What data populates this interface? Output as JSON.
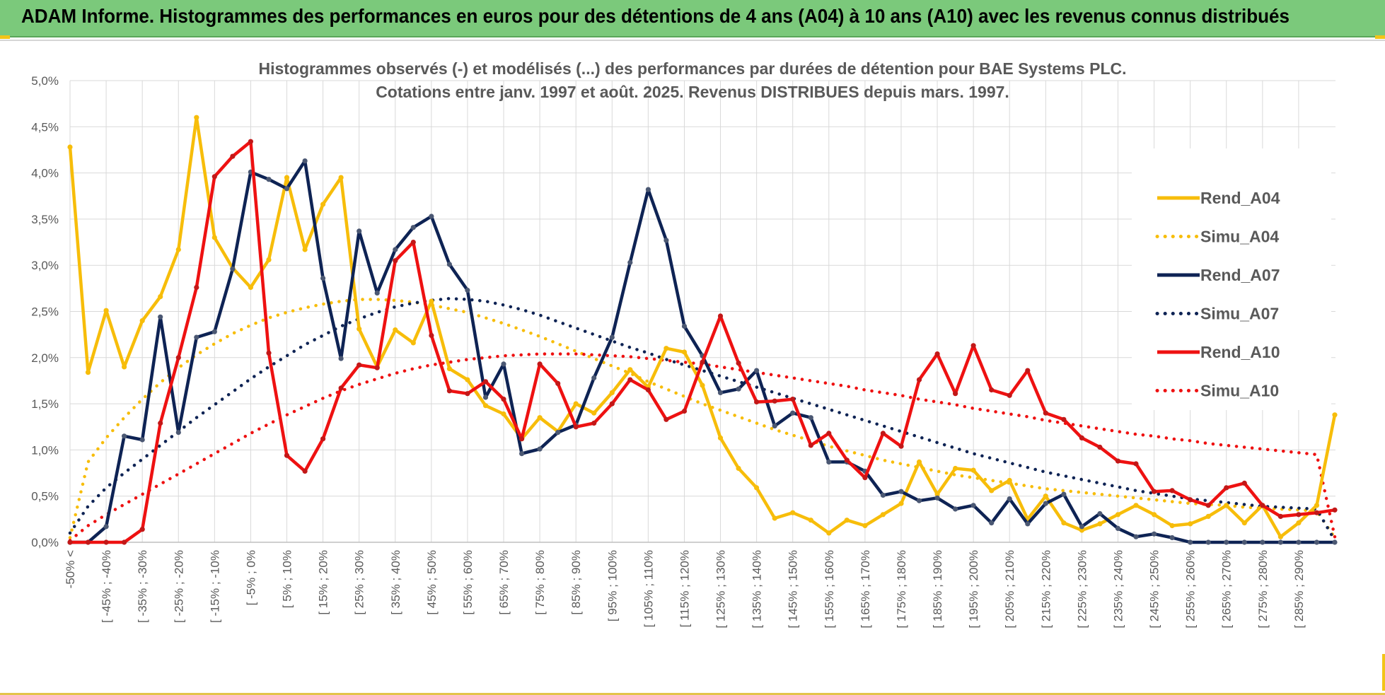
{
  "header": {
    "title": "ADAM Informe. Histogrammes des performances en euros pour des détentions de 4 ans (A04) à 10 ans (A10) avec les revenus connus distribués"
  },
  "colors": {
    "banner": "#7bc97b",
    "accent": "#f2c418",
    "rend_a04": "#f7bd0a",
    "rend_a07": "#0e2354",
    "rend_a10": "#ee1111",
    "grid": "#d9d9d9",
    "text": "#595959"
  },
  "chart_data": {
    "type": "line",
    "title_line1": "Histogrammes observés (-) et modélisés (...) des performances par durées de détention pour BAE Systems PLC.",
    "title_line2": "Cotations entre janv. 1997 et août. 2025. Revenus DISTRIBUES depuis mars. 1997.",
    "xlabel": "",
    "ylabel": "",
    "ylim": [
      0,
      5.0
    ],
    "yticks": [
      "0,0%",
      "0,5%",
      "1,0%",
      "1,5%",
      "2,0%",
      "2,5%",
      "3,0%",
      "3,5%",
      "4,0%",
      "4,5%",
      "5,0%"
    ],
    "grid": true,
    "legend_position": "right",
    "x_tick_labels": [
      "-50% <",
      "[ -45% ; -40%",
      "[ -35% ; -30%",
      "[ -25% ; -20%",
      "[ -15% ; -10%",
      "[ -5% ; 0%",
      "[ 5% ; 10%",
      "[ 15% ; 20%",
      "[ 25% ; 30%",
      "[ 35% ; 40%",
      "[ 45% ; 50%",
      "[ 55% ; 60%",
      "[ 65% ; 70%",
      "[ 75% ; 80%",
      "[ 85% ; 90%",
      "[ 95% ; 100%",
      "[ 105% ; 110%",
      "[ 115% ; 120%",
      "[ 125% ; 130%",
      "[ 135% ; 140%",
      "[ 145% ; 150%",
      "[ 155% ; 160%",
      "[ 165% ; 170%",
      "[ 175% ; 180%",
      "[ 185% ; 190%",
      "[ 195% ; 200%",
      "[ 205% ; 210%",
      "[ 215% ; 220%",
      "[ 225% ; 230%",
      "[ 235% ; 240%",
      "[ 245% ; 250%",
      "[ 255% ; 260%",
      "[ 265% ; 270%",
      "[ 275% ; 280%",
      "[ 285% ; 290%"
    ],
    "x_tick_positions": [
      0,
      2,
      4,
      6,
      8,
      10,
      12,
      14,
      16,
      18,
      20,
      22,
      24,
      26,
      28,
      30,
      32,
      34,
      36,
      38,
      40,
      42,
      44,
      46,
      48,
      50,
      52,
      54,
      56,
      58,
      60,
      62,
      64,
      66,
      68
    ],
    "n_points": 71,
    "series": [
      {
        "name": "Rend_A04",
        "style": "solid",
        "color": "#f7bd0a",
        "values": [
          4.28,
          1.84,
          2.51,
          1.9,
          2.4,
          2.66,
          3.17,
          4.6,
          3.3,
          2.97,
          2.76,
          3.06,
          3.95,
          3.17,
          3.66,
          3.95,
          2.31,
          1.9,
          2.3,
          2.16,
          2.61,
          1.88,
          1.76,
          1.48,
          1.39,
          1.12,
          1.35,
          1.2,
          1.5,
          1.4,
          1.62,
          1.87,
          1.68,
          2.1,
          2.06,
          1.7,
          1.13,
          0.8,
          0.59,
          0.26,
          0.32,
          0.24,
          0.1,
          0.24,
          0.18,
          0.3,
          0.42,
          0.87,
          0.52,
          0.8,
          0.78,
          0.56,
          0.67,
          0.25,
          0.5,
          0.21,
          0.13,
          0.2,
          0.3,
          0.4,
          0.3,
          0.18,
          0.2,
          0.28,
          0.4,
          0.21,
          0.4,
          0.06,
          0.21,
          0.4,
          1.38
        ]
      },
      {
        "name": "Simu_A04",
        "style": "dotted",
        "color": "#f7bd0a",
        "values": [
          0.05,
          0.87,
          1.13,
          1.35,
          1.55,
          1.73,
          1.89,
          2.03,
          2.15,
          2.26,
          2.35,
          2.43,
          2.49,
          2.54,
          2.58,
          2.61,
          2.63,
          2.63,
          2.62,
          2.6,
          2.57,
          2.53,
          2.49,
          2.43,
          2.37,
          2.3,
          2.23,
          2.15,
          2.07,
          1.99,
          1.91,
          1.83,
          1.74,
          1.66,
          1.58,
          1.5,
          1.43,
          1.36,
          1.29,
          1.22,
          1.16,
          1.1,
          1.04,
          0.99,
          0.94,
          0.89,
          0.85,
          0.81,
          0.77,
          0.73,
          0.7,
          0.67,
          0.64,
          0.61,
          0.58,
          0.56,
          0.54,
          0.52,
          0.5,
          0.48,
          0.46,
          0.44,
          0.42,
          0.41,
          0.4,
          0.38,
          0.37,
          0.36,
          0.35,
          0.34,
          0.05
        ]
      },
      {
        "name": "Rend_A07",
        "style": "solid",
        "color": "#0e2354",
        "values": [
          0.0,
          0.0,
          0.17,
          1.15,
          1.11,
          2.44,
          1.19,
          2.22,
          2.28,
          2.96,
          4.01,
          3.93,
          3.83,
          4.13,
          2.86,
          1.99,
          3.37,
          2.7,
          3.17,
          3.41,
          3.53,
          3.01,
          2.73,
          1.57,
          1.93,
          0.96,
          1.01,
          1.19,
          1.27,
          1.78,
          2.22,
          3.03,
          3.82,
          3.27,
          2.34,
          2.02,
          1.62,
          1.66,
          1.86,
          1.26,
          1.4,
          1.35,
          0.87,
          0.87,
          0.77,
          0.51,
          0.55,
          0.45,
          0.48,
          0.36,
          0.4,
          0.21,
          0.47,
          0.2,
          0.42,
          0.52,
          0.17,
          0.31,
          0.15,
          0.06,
          0.09,
          0.05,
          0.0,
          0.0,
          0.0,
          0.0,
          0.0,
          0.0,
          0.0,
          0.0,
          0.0
        ]
      },
      {
        "name": "Simu_A07",
        "style": "dotted",
        "color": "#0e2354",
        "values": [
          0.1,
          0.39,
          0.59,
          0.75,
          0.9,
          1.05,
          1.2,
          1.35,
          1.49,
          1.63,
          1.77,
          1.9,
          2.02,
          2.14,
          2.24,
          2.34,
          2.42,
          2.49,
          2.55,
          2.59,
          2.62,
          2.64,
          2.63,
          2.61,
          2.57,
          2.52,
          2.46,
          2.39,
          2.32,
          2.25,
          2.18,
          2.11,
          2.05,
          1.98,
          1.92,
          1.86,
          1.8,
          1.74,
          1.68,
          1.62,
          1.56,
          1.5,
          1.44,
          1.38,
          1.32,
          1.26,
          1.2,
          1.14,
          1.08,
          1.02,
          0.96,
          0.91,
          0.86,
          0.81,
          0.76,
          0.72,
          0.68,
          0.64,
          0.6,
          0.56,
          0.53,
          0.5,
          0.47,
          0.45,
          0.43,
          0.41,
          0.39,
          0.38,
          0.37,
          0.36,
          0.02
        ]
      },
      {
        "name": "Rend_A10",
        "style": "solid",
        "color": "#ee1111",
        "values": [
          0.0,
          0.0,
          0.0,
          0.0,
          0.14,
          1.29,
          2.0,
          2.76,
          3.96,
          4.18,
          4.34,
          2.05,
          0.94,
          0.77,
          1.12,
          1.67,
          1.92,
          1.89,
          3.05,
          3.25,
          2.24,
          1.64,
          1.61,
          1.74,
          1.55,
          1.12,
          1.93,
          1.72,
          1.25,
          1.29,
          1.5,
          1.76,
          1.65,
          1.33,
          1.42,
          1.95,
          2.45,
          1.94,
          1.52,
          1.53,
          1.55,
          1.05,
          1.18,
          0.89,
          0.7,
          1.18,
          1.04,
          1.76,
          2.04,
          1.61,
          2.13,
          1.65,
          1.59,
          1.86,
          1.4,
          1.33,
          1.13,
          1.03,
          0.88,
          0.85,
          0.55,
          0.56,
          0.46,
          0.4,
          0.59,
          0.64,
          0.4,
          0.28,
          0.3,
          0.32,
          0.35
        ]
      },
      {
        "name": "Simu_A10",
        "style": "dotted",
        "color": "#ee1111",
        "values": [
          0.02,
          0.18,
          0.3,
          0.41,
          0.52,
          0.63,
          0.74,
          0.85,
          0.96,
          1.07,
          1.18,
          1.28,
          1.38,
          1.47,
          1.56,
          1.64,
          1.71,
          1.77,
          1.83,
          1.88,
          1.92,
          1.95,
          1.98,
          2.0,
          2.02,
          2.03,
          2.04,
          2.04,
          2.04,
          2.03,
          2.02,
          2.01,
          1.99,
          1.97,
          1.95,
          1.93,
          1.9,
          1.87,
          1.84,
          1.81,
          1.78,
          1.75,
          1.72,
          1.69,
          1.65,
          1.62,
          1.59,
          1.55,
          1.52,
          1.49,
          1.45,
          1.42,
          1.39,
          1.36,
          1.32,
          1.29,
          1.26,
          1.23,
          1.2,
          1.17,
          1.15,
          1.12,
          1.1,
          1.07,
          1.05,
          1.03,
          1.01,
          0.99,
          0.97,
          0.95,
          0.06
        ]
      }
    ],
    "legend": [
      "Rend_A04",
      "Simu_A04",
      "Rend_A07",
      "Simu_A07",
      "Rend_A10",
      "Simu_A10"
    ]
  }
}
